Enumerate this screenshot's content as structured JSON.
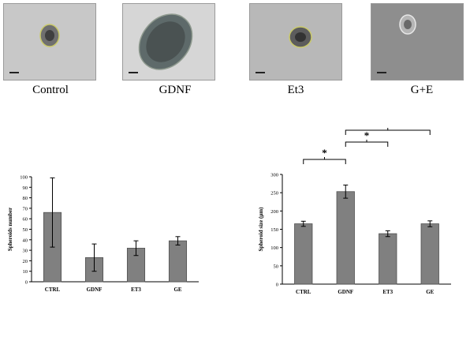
{
  "panels": [
    {
      "label": "Control",
      "bg": "#c8c8c8"
    },
    {
      "label": "GDNF",
      "bg": "#d6d6d6"
    },
    {
      "label": "Et3",
      "bg": "#b8b8b8"
    },
    {
      "label": "G+E",
      "bg": "#8e8e8e"
    }
  ],
  "colors": {
    "bar": "#808080",
    "bar_edge": "#505050"
  },
  "chart_data": [
    {
      "type": "bar",
      "title": "",
      "xlabel": "",
      "ylabel": "Spheroids number",
      "categories": [
        "CTRL",
        "GDNF",
        "ET3",
        "GE"
      ],
      "values": [
        66,
        23,
        32,
        39
      ],
      "errors": [
        33,
        13,
        7,
        4
      ],
      "ylim": [
        0,
        100
      ],
      "yticks": [
        0,
        10,
        20,
        30,
        40,
        50,
        60,
        70,
        80,
        90,
        100
      ],
      "grid": false,
      "legend": "none"
    },
    {
      "type": "bar",
      "title": "",
      "xlabel": "",
      "ylabel": "Spheroid size (µm)",
      "categories": [
        "CTRL",
        "GDNF",
        "ET3",
        "GE"
      ],
      "values": [
        165,
        253,
        138,
        165
      ],
      "errors": [
        7,
        18,
        8,
        8
      ],
      "ylim": [
        0,
        300
      ],
      "yticks": [
        0,
        50,
        100,
        150,
        200,
        250,
        300
      ],
      "grid": false,
      "legend": "none",
      "significance": [
        {
          "from": "CTRL",
          "to": "GDNF",
          "label": "*"
        },
        {
          "from": "GDNF",
          "to": "ET3",
          "label": "*"
        },
        {
          "from": "GDNF",
          "to": "GE",
          "label": "*"
        }
      ]
    }
  ]
}
